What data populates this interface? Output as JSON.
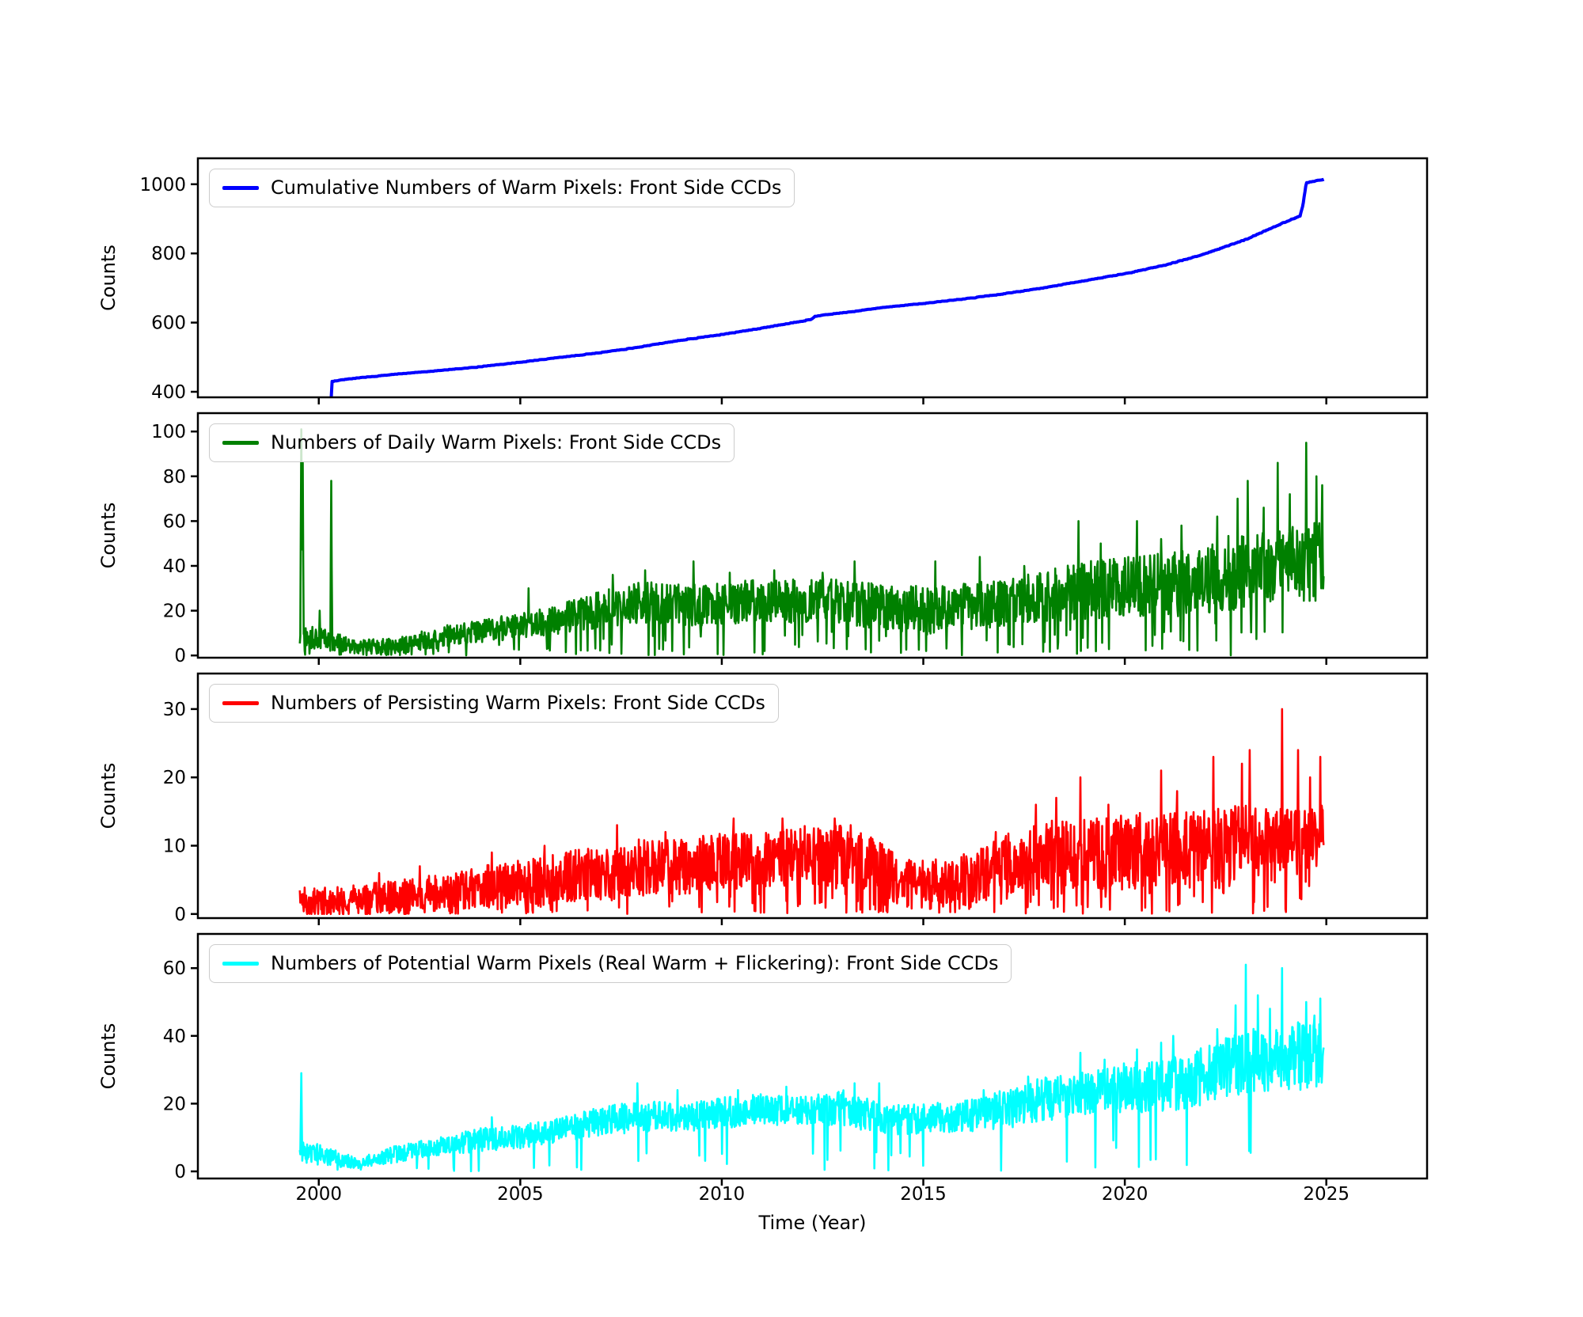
{
  "chart_data": {
    "type": "line",
    "title": "",
    "xlabel": "Time (Year)",
    "xlim": [
      1997.0,
      2027.5
    ],
    "xticks": [
      2000,
      2005,
      2010,
      2015,
      2020,
      2025
    ],
    "grid": false,
    "legend_position": "upper-left",
    "panels": [
      {
        "name": "cumulative-warm-pixels",
        "legend": "Cumulative Numbers of Warm Pixels: Front Side CCDs",
        "color": "#0000ff",
        "ylabel": "Counts",
        "ylim": [
          384,
          1075
        ],
        "yticks": [
          400,
          600,
          800,
          1000
        ],
        "series_type": "cumulative",
        "seed": 5,
        "x_start": 2000.31,
        "x_end": 2024.94,
        "keypoints": [
          [
            2000.31,
            384
          ],
          [
            2000.315,
            430
          ],
          [
            2001,
            440
          ],
          [
            2002,
            451
          ],
          [
            2003,
            461
          ],
          [
            2004,
            472
          ],
          [
            2005,
            485
          ],
          [
            2006,
            499
          ],
          [
            2007,
            513
          ],
          [
            2007.5,
            521
          ],
          [
            2008,
            530
          ],
          [
            2009,
            549
          ],
          [
            2010,
            565
          ],
          [
            2011,
            584
          ],
          [
            2011.5,
            594
          ],
          [
            2012,
            604
          ],
          [
            2012.25,
            611
          ],
          [
            2012.3,
            618
          ],
          [
            2013,
            628
          ],
          [
            2014,
            643
          ],
          [
            2015,
            655
          ],
          [
            2016,
            668
          ],
          [
            2017,
            683
          ],
          [
            2018,
            700
          ],
          [
            2019,
            721
          ],
          [
            2020,
            741
          ],
          [
            2021,
            766
          ],
          [
            2022,
            799
          ],
          [
            2023,
            840
          ],
          [
            2023.5,
            866
          ],
          [
            2024,
            892
          ],
          [
            2024.35,
            908
          ],
          [
            2024.42,
            940
          ],
          [
            2024.5,
            1003
          ],
          [
            2024.65,
            1008
          ],
          [
            2024.8,
            1011
          ],
          [
            2024.94,
            1014
          ]
        ]
      },
      {
        "name": "daily-warm-pixels",
        "legend": "Numbers of Daily Warm Pixels: Front Side CCDs",
        "color": "#008000",
        "ylabel": "Counts",
        "ylim": [
          -1,
          108.2
        ],
        "yticks": [
          0,
          20,
          40,
          60,
          80,
          100
        ],
        "series_type": "noisy",
        "seed": 11,
        "dip_prob": 0.06,
        "x_start": 1999.53,
        "x_end": 2024.94,
        "envelope": [
          [
            1999.53,
            2,
            12
          ],
          [
            2000.0,
            3,
            14
          ],
          [
            2000.45,
            2,
            10
          ],
          [
            2001.0,
            1,
            7
          ],
          [
            2002.0,
            1,
            8
          ],
          [
            2003.0,
            4,
            13
          ],
          [
            2004.0,
            6,
            16
          ],
          [
            2005.0,
            8,
            19
          ],
          [
            2006.0,
            10,
            23
          ],
          [
            2007.0,
            13,
            29
          ],
          [
            2008.0,
            15,
            33
          ],
          [
            2009.0,
            14,
            32
          ],
          [
            2010.0,
            14,
            33
          ],
          [
            2011.0,
            16,
            35
          ],
          [
            2012.0,
            15,
            34
          ],
          [
            2013.0,
            15,
            34
          ],
          [
            2014.0,
            12,
            32
          ],
          [
            2015.0,
            10,
            31
          ],
          [
            2016.0,
            12,
            32
          ],
          [
            2017.0,
            14,
            34
          ],
          [
            2018.0,
            16,
            38
          ],
          [
            2019.0,
            17,
            42
          ],
          [
            2020.0,
            18,
            44
          ],
          [
            2021.0,
            18,
            46
          ],
          [
            2022.0,
            20,
            50
          ],
          [
            2023.0,
            22,
            56
          ],
          [
            2024.0,
            24,
            58
          ],
          [
            2024.94,
            25,
            60
          ]
        ],
        "spikes": [
          [
            1999.57,
            101
          ],
          [
            1999.6,
            86
          ],
          [
            2000.02,
            20
          ],
          [
            2000.31,
            78
          ],
          [
            2005.2,
            30
          ],
          [
            2007.3,
            36
          ],
          [
            2008.1,
            38
          ],
          [
            2009.3,
            42
          ],
          [
            2010.2,
            37
          ],
          [
            2011.3,
            38
          ],
          [
            2012.5,
            37
          ],
          [
            2013.3,
            42
          ],
          [
            2015.3,
            42
          ],
          [
            2016.4,
            44
          ],
          [
            2017.5,
            40
          ],
          [
            2018.85,
            60
          ],
          [
            2019.4,
            50
          ],
          [
            2020.3,
            60
          ],
          [
            2020.9,
            52
          ],
          [
            2021.4,
            58
          ],
          [
            2022.3,
            62
          ],
          [
            2022.8,
            70
          ],
          [
            2023.05,
            78
          ],
          [
            2023.45,
            66
          ],
          [
            2023.8,
            86
          ],
          [
            2024.1,
            72
          ],
          [
            2024.5,
            95
          ],
          [
            2024.75,
            80
          ],
          [
            2024.9,
            76
          ]
        ]
      },
      {
        "name": "persisting-warm-pixels",
        "legend": "Numbers of Persisting Warm Pixels: Front Side CCDs",
        "color": "#ff0000",
        "ylabel": "Counts",
        "ylim": [
          -0.6,
          35.2
        ],
        "yticks": [
          0,
          10,
          20,
          30
        ],
        "series_type": "noisy",
        "seed": 23,
        "dip_prob": 0.08,
        "x_start": 1999.53,
        "x_end": 2024.94,
        "envelope": [
          [
            1999.53,
            0,
            4
          ],
          [
            2000.5,
            0,
            4
          ],
          [
            2002.0,
            0,
            5
          ],
          [
            2003.0,
            1,
            6
          ],
          [
            2004.0,
            1,
            7
          ],
          [
            2005.0,
            1,
            8
          ],
          [
            2006.0,
            2,
            9
          ],
          [
            2007.0,
            2,
            10
          ],
          [
            2008.0,
            3,
            11
          ],
          [
            2009.0,
            3,
            11
          ],
          [
            2010.0,
            4,
            12
          ],
          [
            2011.0,
            4,
            12
          ],
          [
            2012.0,
            4,
            13
          ],
          [
            2013.0,
            4,
            13
          ],
          [
            2013.8,
            3,
            11
          ],
          [
            2014.5,
            1,
            8
          ],
          [
            2015.5,
            1,
            8
          ],
          [
            2016.5,
            2,
            10
          ],
          [
            2017.5,
            4,
            13
          ],
          [
            2018.5,
            4,
            14
          ],
          [
            2019.5,
            4,
            14
          ],
          [
            2020.5,
            4,
            15
          ],
          [
            2021.5,
            5,
            15
          ],
          [
            2022.5,
            5,
            16
          ],
          [
            2023.5,
            5,
            16
          ],
          [
            2024.94,
            5,
            17
          ]
        ],
        "spikes": [
          [
            2001.5,
            6
          ],
          [
            2002.5,
            7
          ],
          [
            2004.3,
            9
          ],
          [
            2005.6,
            10
          ],
          [
            2007.4,
            13
          ],
          [
            2008.6,
            12
          ],
          [
            2010.3,
            14
          ],
          [
            2011.5,
            14
          ],
          [
            2012.8,
            14
          ],
          [
            2013.2,
            13
          ],
          [
            2016.8,
            12
          ],
          [
            2017.8,
            16
          ],
          [
            2018.3,
            17
          ],
          [
            2018.9,
            20
          ],
          [
            2019.6,
            16
          ],
          [
            2020.9,
            21
          ],
          [
            2021.3,
            18
          ],
          [
            2022.2,
            23
          ],
          [
            2022.9,
            22
          ],
          [
            2023.1,
            24
          ],
          [
            2023.9,
            30
          ],
          [
            2024.3,
            24
          ],
          [
            2024.6,
            20
          ],
          [
            2024.85,
            23
          ]
        ]
      },
      {
        "name": "potential-warm-pixels",
        "legend": "Numbers of Potential Warm Pixels (Real Warm + Flickering): Front Side CCDs",
        "color": "#00ffff",
        "ylabel": "Counts",
        "ylim": [
          -2.1,
          70.1
        ],
        "yticks": [
          0,
          20,
          40,
          60
        ],
        "series_type": "noisy",
        "seed": 37,
        "dip_prob": 0.02,
        "x_start": 1999.53,
        "x_end": 2024.94,
        "envelope": [
          [
            1999.53,
            3,
            9
          ],
          [
            2000.0,
            2,
            8
          ],
          [
            2001.0,
            1,
            4
          ],
          [
            2002.0,
            3,
            8
          ],
          [
            2003.0,
            5,
            10
          ],
          [
            2004.0,
            6,
            13
          ],
          [
            2005.0,
            7,
            14
          ],
          [
            2006.0,
            9,
            16
          ],
          [
            2007.0,
            11,
            19
          ],
          [
            2008.0,
            12,
            21
          ],
          [
            2009.0,
            12,
            20
          ],
          [
            2010.0,
            13,
            22
          ],
          [
            2011.0,
            14,
            23
          ],
          [
            2012.0,
            14,
            22
          ],
          [
            2013.0,
            14,
            24
          ],
          [
            2014.0,
            11,
            20
          ],
          [
            2015.0,
            11,
            20
          ],
          [
            2016.0,
            12,
            21
          ],
          [
            2017.0,
            13,
            24
          ],
          [
            2018.0,
            15,
            28
          ],
          [
            2019.0,
            17,
            30
          ],
          [
            2020.0,
            18,
            32
          ],
          [
            2021.0,
            18,
            33
          ],
          [
            2022.0,
            20,
            37
          ],
          [
            2023.0,
            23,
            42
          ],
          [
            2024.0,
            24,
            43
          ],
          [
            2024.94,
            26,
            45
          ]
        ],
        "spikes": [
          [
            1999.57,
            29
          ],
          [
            2004.3,
            16
          ],
          [
            2007.9,
            26
          ],
          [
            2008.9,
            24
          ],
          [
            2010.4,
            24
          ],
          [
            2011.6,
            25
          ],
          [
            2013.3,
            26
          ],
          [
            2013.9,
            26
          ],
          [
            2016.5,
            24
          ],
          [
            2017.6,
            28
          ],
          [
            2018.9,
            35
          ],
          [
            2019.5,
            33
          ],
          [
            2020.3,
            36
          ],
          [
            2020.9,
            38
          ],
          [
            2021.2,
            40
          ],
          [
            2022.3,
            42
          ],
          [
            2022.75,
            49
          ],
          [
            2023.0,
            61
          ],
          [
            2023.3,
            52
          ],
          [
            2023.6,
            48
          ],
          [
            2023.9,
            60
          ],
          [
            2024.3,
            44
          ],
          [
            2024.5,
            50
          ],
          [
            2024.7,
            46
          ],
          [
            2024.85,
            51
          ]
        ]
      }
    ]
  }
}
